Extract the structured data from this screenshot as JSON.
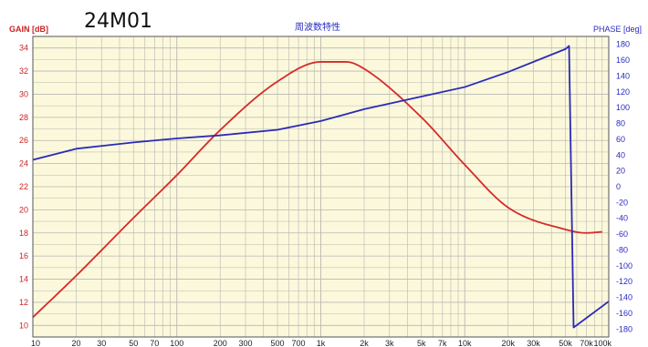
{
  "chart_data": {
    "type": "line",
    "title": "24M01",
    "subtitle": "周波数特性",
    "xlabel": "",
    "ylabel": "GAIN [dB]",
    "y2label": "PHASE [deg]",
    "xscale": "log",
    "xlim": [
      10,
      100000
    ],
    "ylim": [
      9,
      35
    ],
    "y2lim": [
      -190,
      190
    ],
    "x_tick_labels": [
      "10",
      "20",
      "30",
      "50",
      "70",
      "100",
      "200",
      "300",
      "500",
      "700",
      "1k",
      "2k",
      "3k",
      "5k",
      "7k",
      "10k",
      "20k",
      "30k",
      "50k",
      "70k",
      "100k"
    ],
    "y_tick_labels": [
      "10",
      "12",
      "14",
      "16",
      "18",
      "20",
      "22",
      "24",
      "26",
      "28",
      "30",
      "32",
      "34"
    ],
    "y2_tick_labels": [
      "180",
      "160",
      "140",
      "120",
      "100",
      "80",
      "60",
      "40",
      "20",
      "0",
      "-20",
      "-40",
      "-60",
      "-80",
      "-100",
      "-120",
      "-140",
      "-160",
      "-180"
    ],
    "grid": true,
    "background": "#fbf8dc",
    "series": [
      {
        "axis": "left",
        "color": "#d62a2a",
        "x": [
          10,
          20,
          50,
          100,
          200,
          500,
          1000,
          1500,
          2000,
          5000,
          10000,
          20000,
          50000,
          70000,
          90000
        ],
        "y": [
          10.7,
          14.3,
          19.3,
          23.0,
          26.9,
          31.1,
          32.8,
          32.8,
          32.2,
          28.0,
          23.9,
          20.2,
          18.3,
          18.0,
          18.1
        ]
      },
      {
        "axis": "right",
        "color": "#2a2ab8",
        "x": [
          10,
          20,
          50,
          100,
          200,
          500,
          1000,
          2000,
          5000,
          10000,
          20000,
          50000,
          53000,
          57000,
          100000
        ],
        "y": [
          34,
          48,
          56,
          61,
          65,
          72,
          83,
          98,
          114,
          126,
          145,
          174,
          178,
          -178,
          -145
        ]
      }
    ]
  },
  "colors": {
    "gain_axis": "#cc2222",
    "phase_axis": "#2a2ac0",
    "grid": "#b8b8b0",
    "plot_background": "#fbf8dc"
  }
}
